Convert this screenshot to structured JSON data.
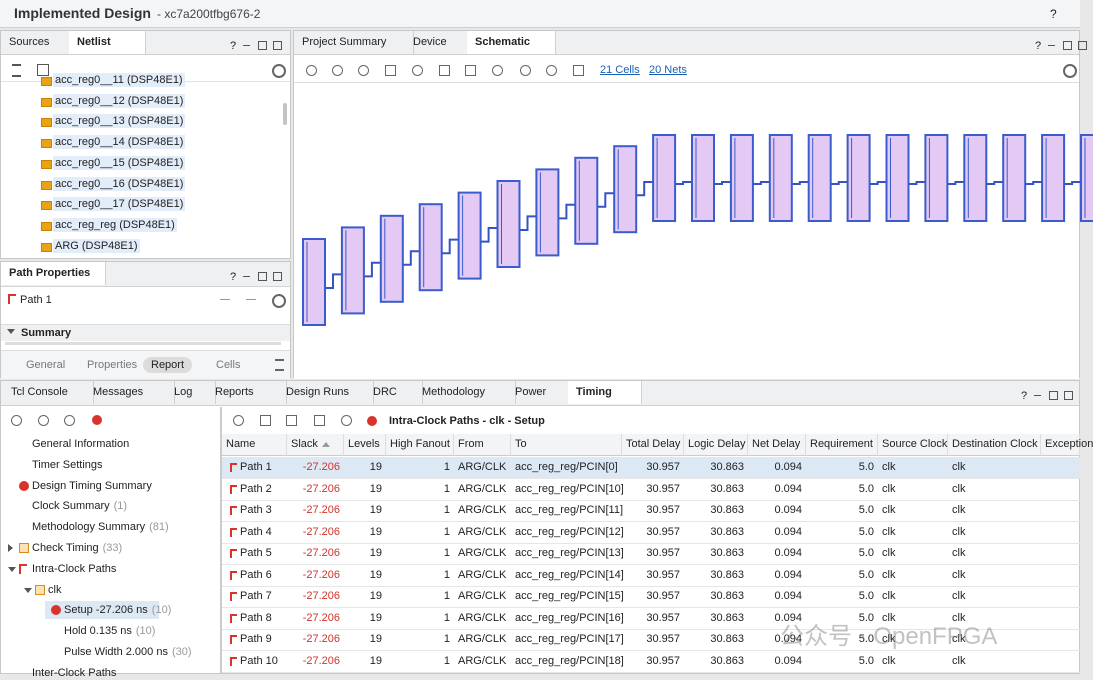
{
  "header": {
    "title": "Implemented Design",
    "part": "- xc7a200tfbg676-2",
    "help": "?"
  },
  "sources_panel": {
    "tabs": [
      "Sources",
      "Netlist"
    ],
    "help": "?",
    "items": [
      "acc_reg0__11 (DSP48E1)",
      "acc_reg0__12 (DSP48E1)",
      "acc_reg0__13 (DSP48E1)",
      "acc_reg0__14 (DSP48E1)",
      "acc_reg0__15 (DSP48E1)",
      "acc_reg0__16 (DSP48E1)",
      "acc_reg0__17 (DSP48E1)",
      "acc_reg_reg (DSP48E1)",
      "ARG (DSP48E1)"
    ]
  },
  "path_properties": {
    "title": "Path Properties",
    "help": "?",
    "path": "Path 1",
    "section": "Summary",
    "tabs": [
      "General",
      "Properties",
      "Report",
      "Cells"
    ]
  },
  "schematic_panel": {
    "tabs": [
      "Project Summary",
      "Device",
      "Schematic"
    ],
    "help": "?",
    "cells": "21 Cells",
    "nets": "20 Nets"
  },
  "bottom_panel": {
    "tabs": [
      "Tcl Console",
      "Messages",
      "Log",
      "Reports",
      "Design Runs",
      "DRC",
      "Methodology",
      "Power",
      "Timing"
    ],
    "help": "?"
  },
  "timing_tree": [
    {
      "label": "General Information"
    },
    {
      "label": "Timer Settings"
    },
    {
      "label": "Design Timing Summary"
    },
    {
      "label": "Clock Summary",
      "count": "(1)"
    },
    {
      "label": "Methodology Summary",
      "count": "(81)"
    },
    {
      "label": "Check Timing",
      "count": "(33)"
    },
    {
      "label": "Intra-Clock Paths"
    },
    {
      "label": "clk"
    },
    {
      "label": "Setup -27.206 ns",
      "count": "(10)"
    },
    {
      "label": "Hold 0.135 ns",
      "count": "(10)"
    },
    {
      "label": "Pulse Width 2.000 ns",
      "count": "(30)"
    },
    {
      "label": "Inter-Clock Paths"
    }
  ],
  "table": {
    "title": "Intra-Clock Paths - clk - Setup",
    "columns": [
      "Name",
      "Slack",
      "Levels",
      "High Fanout",
      "From",
      "To",
      "Total Delay",
      "Logic Delay",
      "Net Delay",
      "Requirement",
      "Source Clock",
      "Destination Clock",
      "Exception"
    ],
    "rows": [
      [
        "Path 1",
        "-27.206",
        "19",
        "1",
        "ARG/CLK",
        "acc_reg_reg/PCIN[0]",
        "30.957",
        "30.863",
        "0.094",
        "5.0",
        "clk",
        "clk"
      ],
      [
        "Path 2",
        "-27.206",
        "19",
        "1",
        "ARG/CLK",
        "acc_reg_reg/PCIN[10]",
        "30.957",
        "30.863",
        "0.094",
        "5.0",
        "clk",
        "clk"
      ],
      [
        "Path 3",
        "-27.206",
        "19",
        "1",
        "ARG/CLK",
        "acc_reg_reg/PCIN[11]",
        "30.957",
        "30.863",
        "0.094",
        "5.0",
        "clk",
        "clk"
      ],
      [
        "Path 4",
        "-27.206",
        "19",
        "1",
        "ARG/CLK",
        "acc_reg_reg/PCIN[12]",
        "30.957",
        "30.863",
        "0.094",
        "5.0",
        "clk",
        "clk"
      ],
      [
        "Path 5",
        "-27.206",
        "19",
        "1",
        "ARG/CLK",
        "acc_reg_reg/PCIN[13]",
        "30.957",
        "30.863",
        "0.094",
        "5.0",
        "clk",
        "clk"
      ],
      [
        "Path 6",
        "-27.206",
        "19",
        "1",
        "ARG/CLK",
        "acc_reg_reg/PCIN[14]",
        "30.957",
        "30.863",
        "0.094",
        "5.0",
        "clk",
        "clk"
      ],
      [
        "Path 7",
        "-27.206",
        "19",
        "1",
        "ARG/CLK",
        "acc_reg_reg/PCIN[15]",
        "30.957",
        "30.863",
        "0.094",
        "5.0",
        "clk",
        "clk"
      ],
      [
        "Path 8",
        "-27.206",
        "19",
        "1",
        "ARG/CLK",
        "acc_reg_reg/PCIN[16]",
        "30.957",
        "30.863",
        "0.094",
        "5.0",
        "clk",
        "clk"
      ],
      [
        "Path 9",
        "-27.206",
        "19",
        "1",
        "ARG/CLK",
        "acc_reg_reg/PCIN[17]",
        "30.957",
        "30.863",
        "0.094",
        "5.0",
        "clk",
        "clk"
      ],
      [
        "Path 10",
        "-27.206",
        "19",
        "1",
        "ARG/CLK",
        "acc_reg_reg/PCIN[18]",
        "30.957",
        "30.863",
        "0.094",
        "5.0",
        "clk",
        "clk"
      ]
    ]
  },
  "watermark": "公众号 · OpenFPGA"
}
